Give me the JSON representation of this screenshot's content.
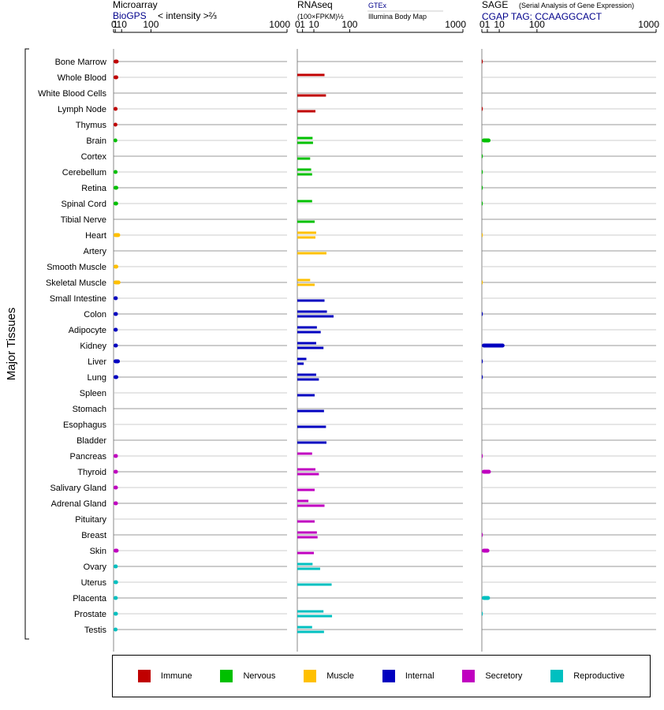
{
  "headers": {
    "microarray": {
      "title": "Microarray",
      "source": "BioGPS",
      "unit": "< intensity >⅔"
    },
    "rnaseq": {
      "title": "RNAseq",
      "unit": "(100×FPKM)½",
      "source1": "GTEx",
      "source2": "Illumina Body Map"
    },
    "sage": {
      "title": "SAGE",
      "subtitle": "(Serial Analysis of Gene Expression)",
      "tag": "CGAP TAG: CCAAGGCACT"
    }
  },
  "y_axis_title": "Major Tissues",
  "legend": [
    {
      "label": "Immune",
      "color": "#c00000"
    },
    {
      "label": "Nervous",
      "color": "#00c000"
    },
    {
      "label": "Muscle",
      "color": "#ffc000"
    },
    {
      "label": "Internal",
      "color": "#0000c0"
    },
    {
      "label": "Secretory",
      "color": "#c000c0"
    },
    {
      "label": "Reproductive",
      "color": "#00c0c0"
    }
  ],
  "chart_data": {
    "type": "bar",
    "orientation": "horizontal",
    "x_scale": "transformed",
    "ticks": [
      0,
      1,
      10,
      100,
      1000
    ],
    "categories": [
      "Bone Marrow",
      "Whole Blood",
      "White Blood Cells",
      "Lymph Node",
      "Thymus",
      "Brain",
      "Cortex",
      "Cerebellum",
      "Retina",
      "Spinal Cord",
      "Tibial Nerve",
      "Heart",
      "Artery",
      "Smooth Muscle",
      "Skeletal Muscle",
      "Small Intestine",
      "Colon",
      "Adipocyte",
      "Kidney",
      "Liver",
      "Lung",
      "Spleen",
      "Stomach",
      "Esophagus",
      "Bladder",
      "Pancreas",
      "Thyroid",
      "Salivary Gland",
      "Adrenal Gland",
      "Pituitary",
      "Breast",
      "Skin",
      "Ovary",
      "Uterus",
      "Placenta",
      "Prostate",
      "Testis"
    ],
    "groups": [
      "Immune",
      "Immune",
      "Immune",
      "Immune",
      "Immune",
      "Nervous",
      "Nervous",
      "Nervous",
      "Nervous",
      "Nervous",
      "Nervous",
      "Muscle",
      "Muscle",
      "Muscle",
      "Muscle",
      "Internal",
      "Internal",
      "Internal",
      "Internal",
      "Internal",
      "Internal",
      "Internal",
      "Internal",
      "Internal",
      "Internal",
      "Secretory",
      "Secretory",
      "Secretory",
      "Secretory",
      "Secretory",
      "Secretory",
      "Secretory",
      "Reproductive",
      "Reproductive",
      "Reproductive",
      "Reproductive",
      "Reproductive"
    ],
    "microarray": [
      5,
      4.5,
      null,
      3.5,
      3.3,
      3.2,
      null,
      3.5,
      4.5,
      4.3,
      null,
      7.5,
      null,
      4.5,
      8,
      3.8,
      4,
      3.8,
      4,
      7,
      4.5,
      null,
      null,
      null,
      null,
      4,
      4,
      4,
      4,
      null,
      null,
      5,
      3.8,
      4.2,
      3.8,
      4,
      3.5
    ],
    "rnaseq_gtex": [
      null,
      27,
      null,
      null,
      null,
      8.5,
      null,
      7,
      null,
      8,
      null,
      13,
      null,
      null,
      6,
      null,
      32,
      14,
      13,
      3,
      13,
      null,
      null,
      null,
      null,
      8,
      12,
      null,
      4.5,
      null,
      14,
      null,
      8.5,
      null,
      null,
      25,
      8
    ],
    "rnaseq_ibm": [
      null,
      null,
      30,
      12,
      null,
      9,
      6,
      8,
      null,
      null,
      11,
      12,
      31,
      null,
      11,
      27,
      48,
      20,
      25,
      1.5,
      17,
      11,
      26,
      30,
      31,
      null,
      17,
      11,
      27,
      11,
      15,
      10,
      19,
      43,
      null,
      44,
      26
    ],
    "sage": [
      0.001,
      null,
      null,
      0.001,
      null,
      2.5,
      0.0005,
      0.0005,
      0.0005,
      0.0005,
      null,
      0.0002,
      null,
      null,
      0.0002,
      null,
      0.002,
      null,
      17,
      0.002,
      0.002,
      null,
      null,
      null,
      null,
      0.002,
      2.7,
      null,
      null,
      null,
      0.002,
      1.9,
      null,
      null,
      2.2,
      0.0005,
      null
    ]
  }
}
